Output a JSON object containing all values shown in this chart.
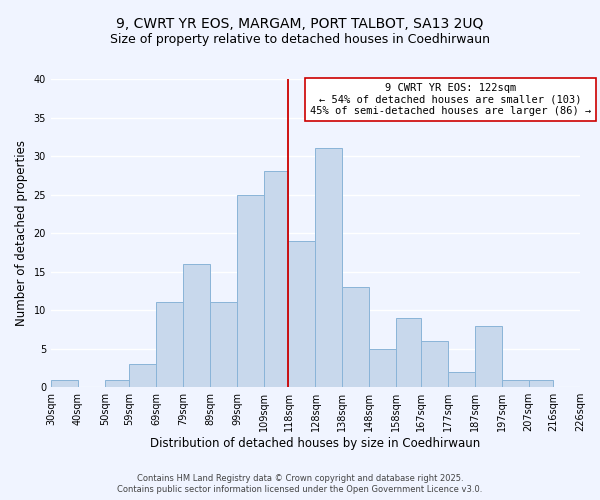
{
  "title": "9, CWRT YR EOS, MARGAM, PORT TALBOT, SA13 2UQ",
  "subtitle": "Size of property relative to detached houses in Coedhirwaun",
  "xlabel": "Distribution of detached houses by size in Coedhirwaun",
  "ylabel": "Number of detached properties",
  "bar_color": "#c8d8ec",
  "bar_edge_color": "#8ab4d8",
  "vline_color": "#cc0000",
  "vline_x": 118,
  "annotation_title": "9 CWRT YR EOS: 122sqm",
  "annotation_line1": "← 54% of detached houses are smaller (103)",
  "annotation_line2": "45% of semi-detached houses are larger (86) →",
  "bins": [
    30,
    40,
    50,
    59,
    69,
    79,
    89,
    99,
    109,
    118,
    128,
    138,
    148,
    158,
    167,
    177,
    187,
    197,
    207,
    216,
    226
  ],
  "counts": [
    1,
    0,
    1,
    3,
    11,
    16,
    11,
    25,
    28,
    19,
    31,
    13,
    5,
    9,
    6,
    2,
    8,
    1,
    1,
    0
  ],
  "tick_labels": [
    "30sqm",
    "40sqm",
    "50sqm",
    "59sqm",
    "69sqm",
    "79sqm",
    "89sqm",
    "99sqm",
    "109sqm",
    "118sqm",
    "128sqm",
    "138sqm",
    "148sqm",
    "158sqm",
    "167sqm",
    "177sqm",
    "187sqm",
    "197sqm",
    "207sqm",
    "216sqm",
    "226sqm"
  ],
  "ylim": [
    0,
    40
  ],
  "yticks": [
    0,
    5,
    10,
    15,
    20,
    25,
    30,
    35,
    40
  ],
  "footer_line1": "Contains HM Land Registry data © Crown copyright and database right 2025.",
  "footer_line2": "Contains public sector information licensed under the Open Government Licence v3.0.",
  "background_color": "#f0f4ff",
  "grid_color": "#ffffff",
  "title_fontsize": 10,
  "subtitle_fontsize": 9,
  "axis_label_fontsize": 8.5,
  "tick_fontsize": 7,
  "footer_fontsize": 6,
  "annotation_fontsize": 7.5
}
